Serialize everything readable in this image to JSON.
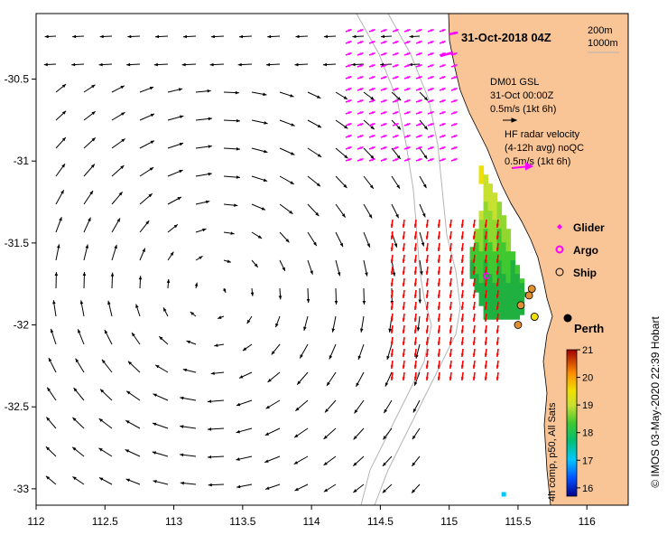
{
  "title": "31-Oct-2018 04Z",
  "depth_legend": {
    "line1": "200m",
    "line2": "1000m"
  },
  "model_label": {
    "name": "DM01 GSL",
    "time": "31-Oct 00:00Z",
    "scale": "0.5m/s (1kt 6h)"
  },
  "radar_label": {
    "line1": "HF radar velocity",
    "line2": "(4-12h avg) noQC",
    "scale": "0.5m/s (1kt 6h)"
  },
  "platform_legend": [
    {
      "label": "Glider",
      "color": "#ff00ff",
      "symbol": "diamond"
    },
    {
      "label": "Argo",
      "color": "#ff00ff",
      "symbol": "ring"
    },
    {
      "label": "Ship",
      "color": "#000000",
      "symbol": "circle"
    }
  ],
  "city_label": "Perth",
  "colorbar": {
    "label": "4h comp, p50, All Sats",
    "ticks": [
      "21",
      "20",
      "19",
      "18",
      "17",
      "16"
    ],
    "min": 15.7,
    "max": 21
  },
  "credit": "© IMOS 03-May-2020 22:39 Hobart",
  "colors": {
    "land": "#f9c596",
    "model_arrow": "#000000",
    "radar_arrow": "#ff0000",
    "radar_arrow_north": "#ff00ff",
    "isobath": "#b4b4b4"
  },
  "chart_data": {
    "type": "map",
    "xlim": [
      112,
      116.3
    ],
    "ylim": [
      -33.1,
      -30.1
    ],
    "x_ticks": [
      112,
      112.5,
      113,
      113.5,
      114,
      114.5,
      115,
      115.5,
      116
    ],
    "x_tick_labels": [
      "112",
      "112.5",
      "113",
      "113.5",
      "114",
      "114.5",
      "115",
      "115.5",
      "116"
    ],
    "y_ticks": [
      -30.5,
      -31,
      -31.5,
      -32,
      -32.5,
      -33
    ],
    "y_tick_labels": [
      "-30.5",
      "-31",
      "-31.5",
      "-32",
      "-32.5",
      "-33"
    ],
    "eddy_center": [
      113.3,
      -31.8
    ],
    "perth": [
      115.86,
      -31.95
    ],
    "ships": [
      [
        115.6,
        -31.78
      ],
      [
        115.58,
        -31.82
      ],
      [
        115.52,
        -31.88
      ],
      [
        115.62,
        -31.95
      ],
      [
        115.5,
        -32.0
      ]
    ],
    "argo": [
      [
        115.27,
        -31.7
      ]
    ],
    "sst_patch": [
      [
        115.2,
        -31.0
      ],
      [
        115.23,
        -31.25
      ],
      [
        115.15,
        -31.5
      ],
      [
        115.15,
        -31.7
      ],
      [
        115.25,
        -31.95
      ],
      [
        115.5,
        -31.95
      ],
      [
        115.55,
        -31.8
      ],
      [
        115.45,
        -31.55
      ],
      [
        115.4,
        -31.35
      ],
      [
        115.3,
        -31.15
      ]
    ]
  }
}
